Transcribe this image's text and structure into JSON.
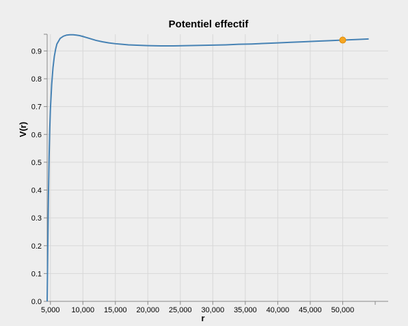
{
  "chart_data": {
    "type": "line",
    "title": "Potentiel effectif",
    "xlabel": "r",
    "ylabel": "V(r)",
    "xlim": [
      4500,
      55000
    ],
    "ylim": [
      0,
      0.96
    ],
    "grid": true,
    "x_ticks": [
      5000,
      10000,
      15000,
      20000,
      25000,
      30000,
      35000,
      40000,
      45000,
      50000
    ],
    "x_tick_labels": [
      "5,000",
      "10,000",
      "15,000",
      "20,000",
      "25,000",
      "30,000",
      "35,000",
      "40,000",
      "45,000",
      "50,000"
    ],
    "y_ticks": [
      0,
      0.1,
      0.2,
      0.3,
      0.4,
      0.5,
      0.6,
      0.7,
      0.8,
      0.9
    ],
    "y_tick_labels": [
      "0.0",
      "0.1",
      "0.2",
      "0.3",
      "0.4",
      "0.5",
      "0.6",
      "0.7",
      "0.8",
      "0.9"
    ],
    "series": [
      {
        "color": "#4682b4",
        "x": [
          4500,
          4600,
          4700,
          4800,
          4900,
          5000,
          5200,
          5400,
          5600,
          5800,
          6000,
          6500,
          7000,
          7500,
          8000,
          8500,
          9000,
          9500,
          10000,
          11000,
          12000,
          13000,
          14000,
          15000,
          16000,
          17000,
          18000,
          19000,
          20000,
          22000,
          24000,
          26000,
          28000,
          30000,
          32000,
          34000,
          36000,
          38000,
          40000,
          42000,
          44000,
          46000,
          48000,
          50000,
          52000,
          54000
        ],
        "y": [
          0.0,
          0.2,
          0.38,
          0.52,
          0.62,
          0.69,
          0.78,
          0.84,
          0.88,
          0.906,
          0.925,
          0.945,
          0.953,
          0.957,
          0.958,
          0.958,
          0.957,
          0.955,
          0.952,
          0.945,
          0.938,
          0.933,
          0.929,
          0.926,
          0.924,
          0.922,
          0.921,
          0.92,
          0.919,
          0.918,
          0.918,
          0.919,
          0.92,
          0.921,
          0.922,
          0.924,
          0.925,
          0.927,
          0.929,
          0.931,
          0.933,
          0.935,
          0.937,
          0.939,
          0.941,
          0.943
        ]
      }
    ],
    "marker": {
      "x": 50000,
      "y": 0.939,
      "color": "#f5a623"
    }
  }
}
